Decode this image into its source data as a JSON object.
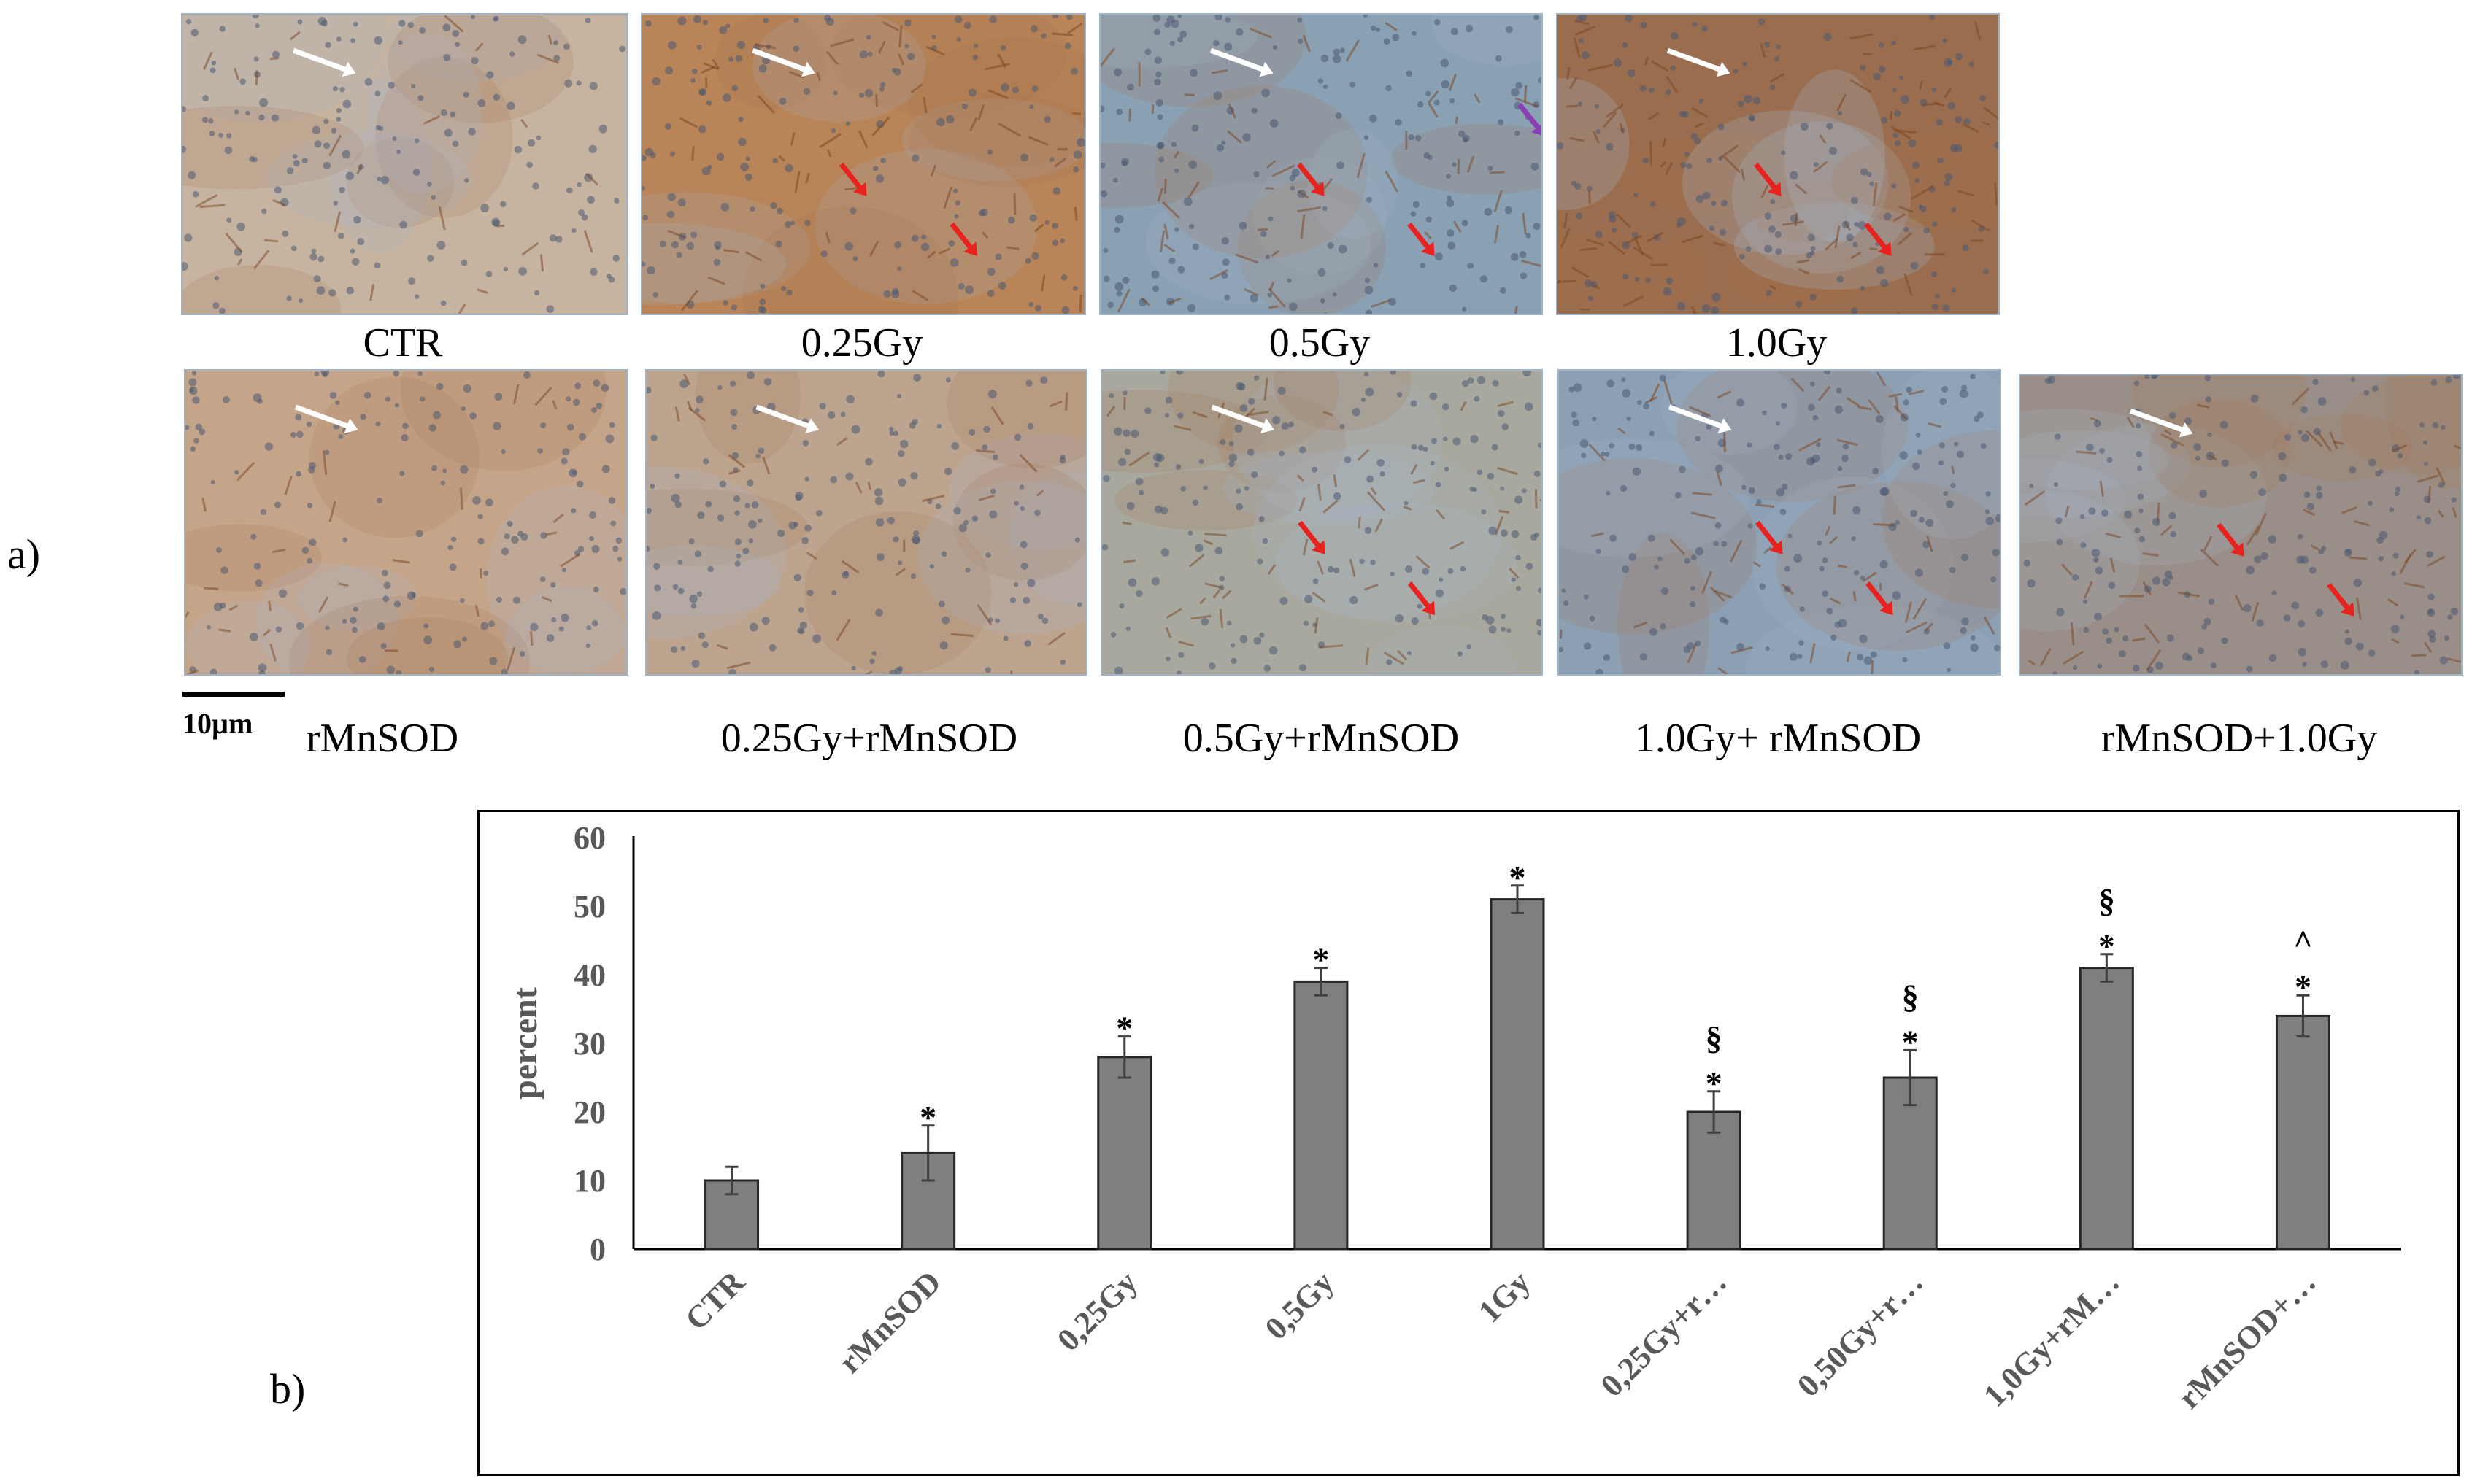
{
  "panel_a": {
    "letter": "a)",
    "scale_bar_label": "10µm",
    "images": [
      {
        "caption": "CTR",
        "tone": "#c6b3a0",
        "stain": "light",
        "arrows": [
          "white"
        ]
      },
      {
        "caption": "0.25Gy",
        "tone": "#b88458",
        "stain": "medium",
        "arrows": [
          "white",
          "red",
          "red"
        ]
      },
      {
        "caption": "0.5Gy",
        "tone": "#8aa0b3",
        "stain": "medium",
        "arrows": [
          "white",
          "red",
          "red",
          "purple",
          "purple"
        ]
      },
      {
        "caption": "1.0Gy",
        "tone": "#9a6d4e",
        "stain": "dark",
        "arrows": [
          "white",
          "red",
          "red"
        ]
      },
      {
        "caption": "rMnSOD",
        "tone": "#c5a58a",
        "stain": "light",
        "arrows": [
          "white"
        ]
      },
      {
        "caption": "0.25Gy+rMnSOD",
        "tone": "#bca48f",
        "stain": "light",
        "arrows": [
          "white"
        ]
      },
      {
        "caption": "0.5Gy+rMnSOD",
        "tone": "#a9a89e",
        "stain": "medium",
        "arrows": [
          "white",
          "red",
          "red"
        ]
      },
      {
        "caption": "1.0Gy+ rMnSOD",
        "tone": "#8d9fb3",
        "stain": "medium",
        "arrows": [
          "white",
          "red",
          "red"
        ]
      },
      {
        "caption": "rMnSOD+1.0Gy",
        "tone": "#9a8f88",
        "stain": "medium",
        "arrows": [
          "white",
          "red",
          "red"
        ]
      }
    ]
  },
  "panel_b": {
    "letter": "b)"
  },
  "chart_data": {
    "type": "bar",
    "categories": [
      "CTR",
      "rMnSOD",
      "0,25Gy",
      "0,5Gy",
      "1Gy",
      "0,25Gy+r…",
      "0,50Gy+r…",
      "1,0Gy+rM…",
      "rMnSOD+…"
    ],
    "values": [
      10,
      14,
      28,
      39,
      51,
      20,
      25,
      41,
      34
    ],
    "errors": [
      2,
      4,
      3,
      2,
      2,
      3,
      4,
      2,
      3
    ],
    "annotations": [
      "",
      "*",
      "*",
      "*",
      "*",
      "§\n*",
      "§\n*",
      "§\n*",
      "^\n*"
    ],
    "ylabel": "percent",
    "xlabel": "",
    "ylim": [
      0,
      60
    ],
    "yticks": [
      0,
      10,
      20,
      30,
      40,
      50,
      60
    ],
    "grid": false,
    "bar_color": "#7f7f7f"
  }
}
